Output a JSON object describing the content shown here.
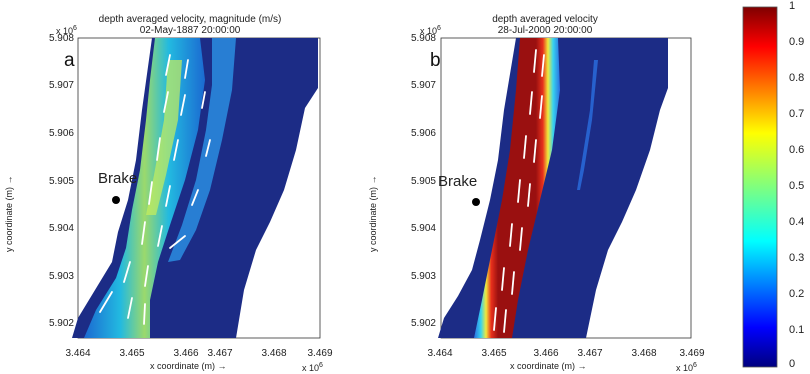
{
  "panel_a": {
    "title_line1": "depth averaged velocity, magnitude (m/s)",
    "title_line2": "02-May-1887 20:00:00",
    "letter": "a",
    "place": "Brake",
    "y_ticks": [
      "5.908",
      "5.907",
      "5.906",
      "5.905",
      "5.904",
      "5.903",
      "5.902"
    ],
    "x_ticks": [
      "3.464",
      "3.465",
      "3.466",
      "3.467",
      "3.468",
      "3.469"
    ],
    "y_exponent": "x 10",
    "y_exponent_power": "6",
    "x_exponent": "x 10",
    "x_exponent_power": "6",
    "xlabel": "x coordinate (m) →",
    "ylabel": "y coordinate (m) →"
  },
  "panel_b": {
    "title_line1": "depth averaged velocity",
    "title_line2": "28-Jul-2000 20:00:00",
    "letter": "b",
    "place": "Brake",
    "y_ticks": [
      "5.908",
      "5.907",
      "5.906",
      "5.905",
      "5.904",
      "5.903",
      "5.902"
    ],
    "x_ticks": [
      "3.464",
      "3.465",
      "3.466",
      "3.467",
      "3.468",
      "3.469"
    ],
    "y_exponent": "x 10",
    "y_exponent_power": "6",
    "x_exponent": "x 10",
    "x_exponent_power": "6",
    "xlabel": "x coordinate (m) →",
    "ylabel": "y coordinate (m) →"
  },
  "colorbar": {
    "ticks": [
      "1",
      "0.9",
      "0.8",
      "0.7",
      "0.6",
      "0.5",
      "0.4",
      "0.3",
      "0.2",
      "0.1",
      "0"
    ],
    "colors": [
      "#00007f",
      "#0000ff",
      "#007fff",
      "#00ffff",
      "#7fff7f",
      "#ffff00",
      "#ff7f00",
      "#ff0000",
      "#7f0000"
    ]
  },
  "colors": {
    "water_dark": "#1c2c86",
    "land": "#ffffff"
  }
}
